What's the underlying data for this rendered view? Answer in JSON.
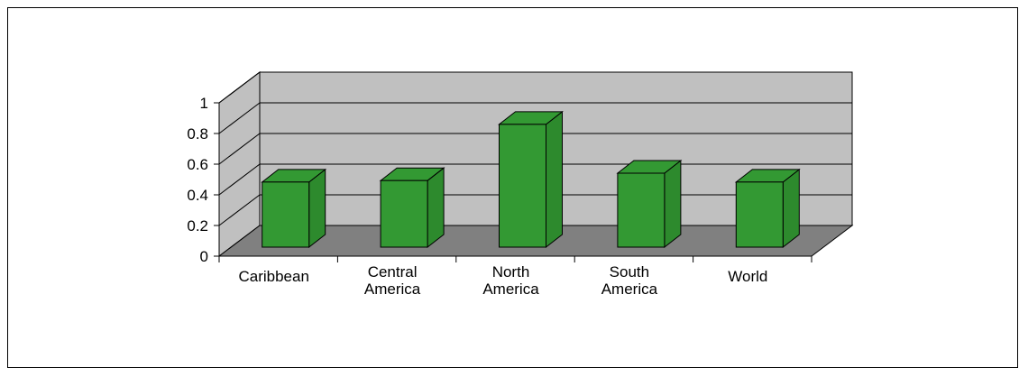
{
  "chart_data": {
    "type": "bar",
    "categories": [
      [
        "Caribbean"
      ],
      [
        "Central",
        "America"
      ],
      [
        "North",
        "America"
      ],
      [
        "South",
        "America"
      ],
      [
        "World"
      ]
    ],
    "values": [
      0.44,
      0.45,
      0.83,
      0.5,
      0.44
    ],
    "ylim": [
      0,
      1
    ],
    "yticks": [
      "0",
      "0.2",
      "0.4",
      "0.6",
      "0.8",
      "1"
    ],
    "title": "",
    "xlabel": "",
    "ylabel": "",
    "grid": true,
    "legend": "none",
    "colors": {
      "bar_front": "#339933",
      "bar_side": "#2d8a2d",
      "bar_top": "#339933",
      "back_wall": "#c0c0c0",
      "side_wall": "#c0c0c0",
      "floor": "#808080"
    }
  }
}
